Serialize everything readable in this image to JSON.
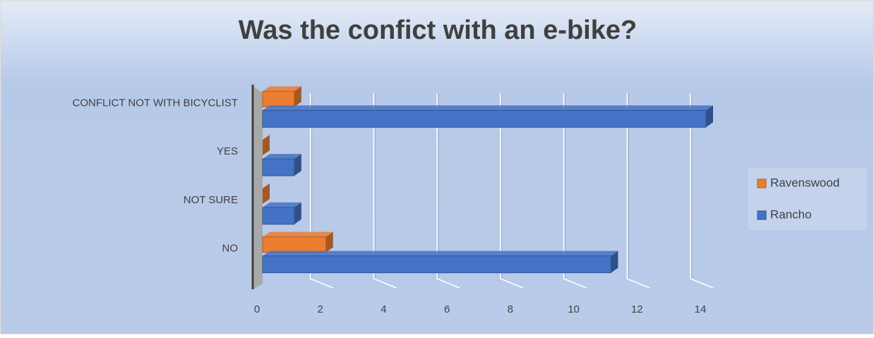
{
  "chart_data": {
    "type": "bar",
    "orientation": "horizontal",
    "title": "Was the confict with an e-bike?",
    "categories": [
      "NO",
      "NOT SURE",
      "YES",
      "CONFLICT NOT WITH BICYCLIST"
    ],
    "series": [
      {
        "name": "Ravenswood",
        "color": "#ed7d31",
        "values": [
          2,
          0,
          0,
          1
        ]
      },
      {
        "name": "Rancho",
        "color": "#4472c4",
        "values": [
          11,
          1,
          1,
          14
        ]
      }
    ],
    "xlim": [
      0,
      14
    ],
    "xticks": [
      0,
      2,
      4,
      6,
      8,
      10,
      12,
      14
    ],
    "grid": true,
    "legend": "right"
  }
}
